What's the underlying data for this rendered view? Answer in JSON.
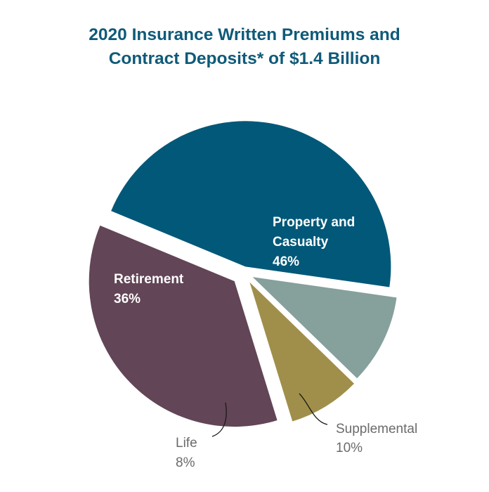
{
  "chart_data": {
    "type": "pie",
    "title_lines": [
      "2020 Insurance Written Premiums and",
      "Contract Deposits* of $1.4 Billion"
    ],
    "unit": "%",
    "slices": [
      {
        "id": "property-casualty",
        "label_lines": [
          "Property and",
          "Casualty"
        ],
        "value": 46,
        "value_label": "46%",
        "color": "#025878",
        "label_style": "inside"
      },
      {
        "id": "supplemental",
        "label_lines": [
          "Supplemental"
        ],
        "value": 10,
        "value_label": "10%",
        "color": "#86a09c",
        "label_style": "outside"
      },
      {
        "id": "life",
        "label_lines": [
          "Life"
        ],
        "value": 8,
        "value_label": "8%",
        "color": "#a08f4a",
        "label_style": "outside"
      },
      {
        "id": "retirement",
        "label_lines": [
          "Retirement"
        ],
        "value": 36,
        "value_label": "36%",
        "color": "#624556",
        "label_style": "inside"
      }
    ]
  }
}
